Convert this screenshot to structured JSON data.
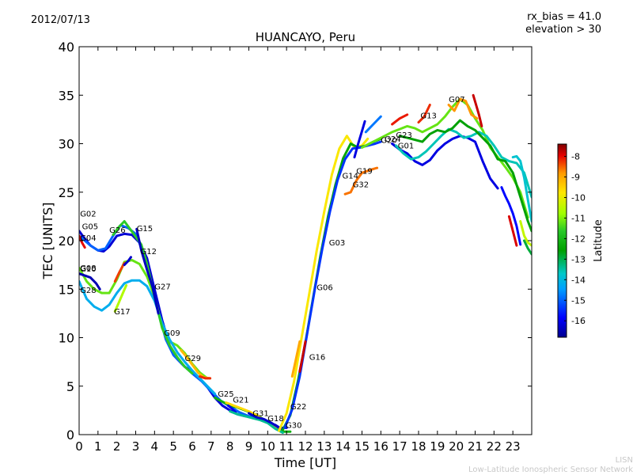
{
  "header": {
    "date": "2012/07/13",
    "rx_bias": "rx_bias = 41.0",
    "elevation": "elevation > 30"
  },
  "footer": {
    "line1": "LISN",
    "line2": "Low-Latitude Ionospheric Sensor Network"
  },
  "colors": {
    "lat_colors": [
      "#00008f",
      "#0000ff",
      "#00a0ff",
      "#00c8c8",
      "#00a000",
      "#28c828",
      "#a0ff00",
      "#ffe600",
      "#ff9900",
      "#e60000",
      "#800000"
    ]
  },
  "chart_data": {
    "type": "line",
    "title": "HUANCAYO, Peru",
    "xlabel": "Time [UT]",
    "ylabel": "TEC [UNITS]",
    "xlim": [
      0,
      24
    ],
    "ylim": [
      0,
      40
    ],
    "xticks": [
      "0",
      "1",
      "2",
      "3",
      "4",
      "5",
      "6",
      "7",
      "8",
      "9",
      "10",
      "11",
      "12",
      "13",
      "14",
      "15",
      "16",
      "17",
      "18",
      "19",
      "20",
      "21",
      "22",
      "23"
    ],
    "yticks": [
      "0",
      "5",
      "10",
      "15",
      "20",
      "25",
      "30",
      "35",
      "40"
    ],
    "colorbar": {
      "label": "Latitude",
      "range": [
        -16.8,
        -7.4
      ],
      "ticks": [
        "-8",
        "-9",
        "-10",
        "-11",
        "-12",
        "-13",
        "-14",
        "-15",
        "-16"
      ]
    },
    "satellite_labels": [
      {
        "name": "G02",
        "x": 0.05,
        "y": 22.5
      },
      {
        "name": "G05",
        "x": 0.15,
        "y": 21.2
      },
      {
        "name": "G04",
        "x": 0.05,
        "y": 20.0
      },
      {
        "name": "G08",
        "x": 0.05,
        "y": 16.9
      },
      {
        "name": "G10",
        "x": 0.05,
        "y": 16.8
      },
      {
        "name": "G28",
        "x": 0.05,
        "y": 14.6
      },
      {
        "name": "G26",
        "x": 1.6,
        "y": 20.8
      },
      {
        "name": "G15",
        "x": 3.05,
        "y": 21.0
      },
      {
        "name": "G12",
        "x": 3.25,
        "y": 18.6
      },
      {
        "name": "G17",
        "x": 1.85,
        "y": 12.4
      },
      {
        "name": "G27",
        "x": 4.0,
        "y": 15.0
      },
      {
        "name": "G09",
        "x": 4.5,
        "y": 10.2
      },
      {
        "name": "G29",
        "x": 5.6,
        "y": 7.6
      },
      {
        "name": "G25",
        "x": 7.35,
        "y": 3.9
      },
      {
        "name": "G21",
        "x": 8.15,
        "y": 3.3
      },
      {
        "name": "G31",
        "x": 9.2,
        "y": 1.9
      },
      {
        "name": "G18",
        "x": 10.0,
        "y": 1.4
      },
      {
        "name": "G22",
        "x": 11.2,
        "y": 2.6
      },
      {
        "name": "G30",
        "x": 10.95,
        "y": 0.7
      },
      {
        "name": "G16",
        "x": 12.2,
        "y": 7.7
      },
      {
        "name": "G06",
        "x": 12.6,
        "y": 14.9
      },
      {
        "name": "G03",
        "x": 13.25,
        "y": 19.5
      },
      {
        "name": "G14",
        "x": 13.95,
        "y": 26.4
      },
      {
        "name": "G19",
        "x": 14.7,
        "y": 26.9
      },
      {
        "name": "G32",
        "x": 14.5,
        "y": 25.5
      },
      {
        "name": "G20",
        "x": 16.0,
        "y": 30.1
      },
      {
        "name": "G24",
        "x": 16.2,
        "y": 30.2
      },
      {
        "name": "G23",
        "x": 16.8,
        "y": 30.6
      },
      {
        "name": "G01",
        "x": 16.9,
        "y": 29.5
      },
      {
        "name": "G13",
        "x": 18.1,
        "y": 32.6
      },
      {
        "name": "G07",
        "x": 19.6,
        "y": 34.3
      }
    ],
    "series": [
      {
        "lat": -16.2,
        "x": [
          0,
          0.3,
          0.6,
          1.0,
          1.3,
          1.6,
          2.0,
          2.4,
          2.8,
          3.2,
          3.6,
          4.0,
          4.4,
          4.8,
          5.2,
          5.6,
          6.0,
          6.4,
          6.8,
          7.2,
          7.6,
          8.0,
          8.4,
          8.8,
          9.2,
          9.6,
          10.0,
          10.4,
          10.8
        ],
        "y": [
          21.0,
          20.2,
          19.5,
          19.0,
          18.9,
          19.4,
          20.5,
          20.7,
          20.6,
          19.8,
          18.2,
          15.0,
          11.8,
          9.2,
          7.8,
          7.0,
          6.5,
          5.8,
          4.9,
          3.8,
          3.0,
          2.5,
          2.1,
          1.9,
          1.8,
          1.6,
          1.3,
          1.0,
          0.5
        ]
      },
      {
        "lat": -15.0,
        "x": [
          0,
          0.3,
          0.6,
          1.0,
          1.4,
          1.8,
          2.2,
          2.6,
          3.0,
          3.4,
          3.8,
          4.2,
          4.6,
          5.0,
          5.5,
          6.0,
          6.5,
          7.0,
          7.5,
          8.0,
          8.5,
          9.0,
          9.5,
          10.0
        ],
        "y": [
          20.5,
          20.0,
          19.5,
          19.0,
          19.2,
          20.5,
          21.6,
          21.3,
          20.7,
          18.8,
          15.8,
          12.6,
          9.8,
          8.2,
          7.2,
          6.3,
          5.5,
          4.5,
          3.5,
          2.9,
          2.3,
          1.9,
          1.6,
          1.3
        ]
      },
      {
        "lat": -11.2,
        "x": [
          0,
          0.4,
          0.8,
          1.2,
          1.6,
          2.0,
          2.4,
          2.8,
          3.2,
          3.6,
          4.0,
          4.4,
          4.8,
          5.2,
          5.6,
          6.0,
          6.4,
          6.8
        ],
        "y": [
          17.2,
          15.8,
          15.0,
          14.6,
          14.6,
          16.0,
          17.8,
          18.0,
          17.6,
          16.3,
          14.2,
          11.2,
          9.6,
          9.2,
          8.4,
          7.3,
          6.4,
          5.8
        ]
      },
      {
        "lat": -14.2,
        "x": [
          0,
          0.4,
          0.8,
          1.2,
          1.6,
          2.0,
          2.4,
          2.8,
          3.2,
          3.6,
          4.0,
          4.4,
          4.8,
          5.2,
          5.6,
          6.0,
          6.4,
          6.8,
          7.2
        ],
        "y": [
          15.8,
          14.0,
          13.2,
          12.8,
          13.4,
          14.6,
          15.6,
          15.9,
          15.9,
          15.3,
          13.8,
          11.5,
          9.8,
          8.5,
          7.5,
          6.6,
          5.8,
          5.0,
          4.2
        ]
      },
      {
        "lat": -11.6,
        "x": [
          1.8,
          2.1,
          2.4,
          2.7,
          3.0,
          3.3,
          3.6,
          4.0,
          4.4,
          4.8,
          5.2,
          5.6,
          6.0
        ],
        "y": [
          20.6,
          21.4,
          22.0,
          21.2,
          20.4,
          19.6,
          17.6,
          14.2,
          11.0,
          9.2,
          8.0,
          7.0,
          6.3
        ]
      },
      {
        "lat": -10.6,
        "x": [
          1.9,
          2.1,
          2.3,
          2.5
        ],
        "y": [
          12.7,
          13.6,
          14.5,
          15.4
        ]
      },
      {
        "lat": -8.3,
        "x": [
          1.9,
          2.15,
          2.4
        ],
        "y": [
          15.8,
          16.8,
          17.7
        ]
      },
      {
        "lat": -16.5,
        "x": [
          0,
          0.3,
          0.6,
          0.9,
          1.1
        ],
        "y": [
          16.6,
          16.4,
          16.2,
          15.6,
          15.0
        ]
      },
      {
        "lat": -16.3,
        "x": [
          2.4,
          2.6,
          2.75
        ],
        "y": [
          17.5,
          17.9,
          18.3
        ]
      },
      {
        "lat": -8.0,
        "x": [
          0.0,
          0.15,
          0.3
        ],
        "y": [
          20.5,
          19.8,
          19.3
        ]
      },
      {
        "lat": -16.4,
        "x": [
          3.05,
          3.3,
          3.6,
          3.9,
          4.2
        ],
        "y": [
          21.2,
          19.0,
          17.0,
          15.2,
          12.5
        ]
      },
      {
        "lat": -9.2,
        "x": [
          5.4,
          5.7,
          6.0,
          6.3,
          6.6,
          6.95
        ],
        "y": [
          8.7,
          8.0,
          7.2,
          6.4,
          5.9,
          5.8
        ]
      },
      {
        "lat": -8.2,
        "x": [
          6.4,
          6.7,
          6.95
        ],
        "y": [
          6.0,
          5.8,
          5.8
        ]
      },
      {
        "lat": -12.2,
        "x": [
          7.2,
          7.6,
          8.0,
          8.4,
          8.8,
          9.2,
          9.6,
          10.0,
          10.4,
          10.8,
          11.2
        ],
        "y": [
          3.8,
          3.4,
          3.0,
          2.8,
          2.5,
          2.2,
          1.8,
          1.3,
          0.7,
          0.3,
          0.3
        ]
      },
      {
        "lat": -9.6,
        "x": [
          7.8,
          8.2,
          8.6,
          9.0,
          9.4,
          9.8,
          10.2,
          10.6
        ],
        "y": [
          3.3,
          3.0,
          2.7,
          2.4,
          2.0,
          1.5,
          1.0,
          0.6
        ]
      },
      {
        "lat": -16.0,
        "x": [
          7.9,
          8.1,
          8.3
        ],
        "y": [
          3.0,
          2.7,
          2.3
        ]
      },
      {
        "lat": -13.4,
        "x": [
          8.0,
          8.4,
          8.8,
          9.2,
          9.6,
          10.0,
          10.4,
          10.8
        ],
        "y": [
          2.4,
          2.1,
          1.9,
          1.7,
          1.5,
          1.2,
          0.6,
          0.2
        ]
      },
      {
        "lat": -16.3,
        "x": [
          9.0,
          9.4,
          9.8,
          10.2,
          10.6,
          11.0
        ],
        "y": [
          2.2,
          1.8,
          1.6,
          1.2,
          0.7,
          0.7
        ]
      },
      {
        "lat": -9.8,
        "x": [
          10.6,
          11.0,
          11.4,
          11.8,
          12.2,
          12.6,
          13.0,
          13.4,
          13.8,
          14.2,
          14.6,
          15.0,
          15.3
        ],
        "y": [
          0.4,
          2.2,
          5.5,
          10.0,
          14.5,
          19.0,
          23.0,
          26.8,
          29.5,
          30.8,
          29.6,
          29.8,
          30.5
        ]
      },
      {
        "lat": -12.4,
        "x": [
          10.8,
          11.2,
          11.6,
          12.0,
          12.4,
          12.8,
          13.2,
          13.6,
          14.0,
          14.4,
          14.8,
          15.2,
          15.6,
          16.0
        ],
        "y": [
          0.5,
          2.0,
          5.5,
          9.5,
          14.0,
          18.5,
          22.5,
          25.8,
          28.5,
          30.0,
          29.6,
          29.8,
          30.2,
          30.5
        ]
      },
      {
        "lat": -15.4,
        "x": [
          10.9,
          11.3,
          11.7,
          12.1,
          12.5,
          12.9,
          13.3,
          13.7,
          14.1,
          14.5,
          14.9,
          15.3,
          15.7,
          16.0
        ],
        "y": [
          0.7,
          2.6,
          6.0,
          10.5,
          15.0,
          19.2,
          23.0,
          26.2,
          28.4,
          29.5,
          29.6,
          29.8,
          30.0,
          30.2
        ]
      },
      {
        "lat": -7.8,
        "x": [
          11.7,
          11.85,
          12.0
        ],
        "y": [
          6.5,
          8.0,
          9.6
        ]
      },
      {
        "lat": -9.0,
        "x": [
          11.3,
          11.5,
          11.7
        ],
        "y": [
          6.0,
          7.8,
          9.6
        ]
      },
      {
        "lat": -8.6,
        "x": [
          14.1,
          14.4,
          14.7,
          15.0,
          15.3,
          15.6,
          15.8
        ],
        "y": [
          24.8,
          25.0,
          26.2,
          27.0,
          27.2,
          27.4,
          27.5
        ]
      },
      {
        "lat": -16.1,
        "x": [
          14.6,
          14.8,
          15.0,
          15.15
        ],
        "y": [
          28.6,
          30.0,
          31.3,
          32.3
        ]
      },
      {
        "lat": -14.8,
        "x": [
          15.2,
          15.6,
          16.0
        ],
        "y": [
          31.2,
          32.0,
          32.8
        ]
      },
      {
        "lat": -11.2,
        "x": [
          15.0,
          15.4,
          15.8,
          16.2,
          16.6,
          17.0,
          17.4,
          17.8,
          18.2,
          18.6,
          19.0,
          19.4,
          19.8,
          20.2,
          20.6,
          21.0,
          21.4,
          21.8,
          22.2,
          22.6,
          23.0,
          23.4,
          23.8
        ],
        "y": [
          29.6,
          30.0,
          30.4,
          30.8,
          31.2,
          31.5,
          31.8,
          31.6,
          31.2,
          31.6,
          32.0,
          32.8,
          33.8,
          34.6,
          34.0,
          32.6,
          31.4,
          29.6,
          28.6,
          27.6,
          26.5,
          25.0,
          22.4
        ]
      },
      {
        "lat": -8.1,
        "x": [
          16.6,
          17.0,
          17.4
        ],
        "y": [
          32.0,
          32.6,
          33.0
        ]
      },
      {
        "lat": -16.1,
        "x": [
          16.6,
          17.0,
          17.4,
          17.8,
          18.2,
          18.6,
          19.0,
          19.4,
          19.8,
          20.2,
          20.6,
          21.0,
          21.4,
          21.8,
          22.2
        ],
        "y": [
          30.0,
          29.4,
          29.0,
          28.2,
          27.8,
          28.3,
          29.3,
          30.0,
          30.5,
          30.8,
          30.6,
          30.2,
          28.2,
          26.4,
          25.4
        ]
      },
      {
        "lat": -13.6,
        "x": [
          16.8,
          17.2,
          17.6,
          18.0,
          18.4,
          18.8,
          19.2,
          19.6,
          20.0,
          20.4,
          20.8,
          21.2,
          21.6,
          22.0,
          22.4,
          22.8,
          23.2,
          23.6,
          24.0
        ],
        "y": [
          29.8,
          29.0,
          28.4,
          28.6,
          29.2,
          30.0,
          30.8,
          31.5,
          31.2,
          30.6,
          30.8,
          31.2,
          30.8,
          29.8,
          28.6,
          28.2,
          28.0,
          27.0,
          24.5
        ]
      },
      {
        "lat": -12.6,
        "x": [
          17.0,
          17.4,
          17.8,
          18.2,
          18.6,
          19.0,
          19.4,
          19.8,
          20.2,
          20.6,
          21.0,
          21.4,
          21.8,
          22.2,
          22.6,
          23.0,
          23.4,
          23.8,
          24.0
        ],
        "y": [
          30.8,
          30.6,
          30.4,
          30.2,
          31.0,
          31.4,
          31.2,
          31.6,
          32.4,
          31.8,
          31.4,
          30.6,
          29.8,
          28.4,
          28.2,
          27.0,
          24.5,
          22.0,
          21.0
        ]
      },
      {
        "lat": -8.2,
        "x": [
          18.0,
          18.3,
          18.6
        ],
        "y": [
          32.2,
          32.8,
          34.0
        ]
      },
      {
        "lat": -8.8,
        "x": [
          19.6,
          19.9,
          20.2,
          20.5,
          20.8,
          21.1
        ],
        "y": [
          34.0,
          33.4,
          34.6,
          34.4,
          33.0,
          32.6
        ]
      },
      {
        "lat": -7.8,
        "x": [
          20.9,
          21.05,
          21.2,
          21.35
        ],
        "y": [
          35.0,
          34.0,
          33.0,
          31.8
        ]
      },
      {
        "lat": -13.8,
        "x": [
          23.0,
          23.2,
          23.4,
          23.6,
          23.8,
          24.0
        ],
        "y": [
          28.6,
          28.7,
          28.2,
          26.5,
          24.2,
          22.0
        ]
      },
      {
        "lat": -7.9,
        "x": [
          22.8,
          23.0,
          23.2
        ],
        "y": [
          22.5,
          21.0,
          19.5
        ]
      },
      {
        "lat": -15.8,
        "x": [
          22.4,
          22.6,
          22.8,
          23.0,
          23.2,
          23.4
        ],
        "y": [
          25.5,
          24.6,
          23.8,
          22.8,
          21.5,
          19.6
        ]
      },
      {
        "lat": -10.4,
        "x": [
          23.4,
          23.6,
          23.8,
          24.0
        ],
        "y": [
          22.0,
          20.5,
          19.8,
          19.5
        ]
      },
      {
        "lat": -12.9,
        "x": [
          23.6,
          23.8,
          24.0
        ],
        "y": [
          20.0,
          19.2,
          18.6
        ]
      }
    ]
  }
}
